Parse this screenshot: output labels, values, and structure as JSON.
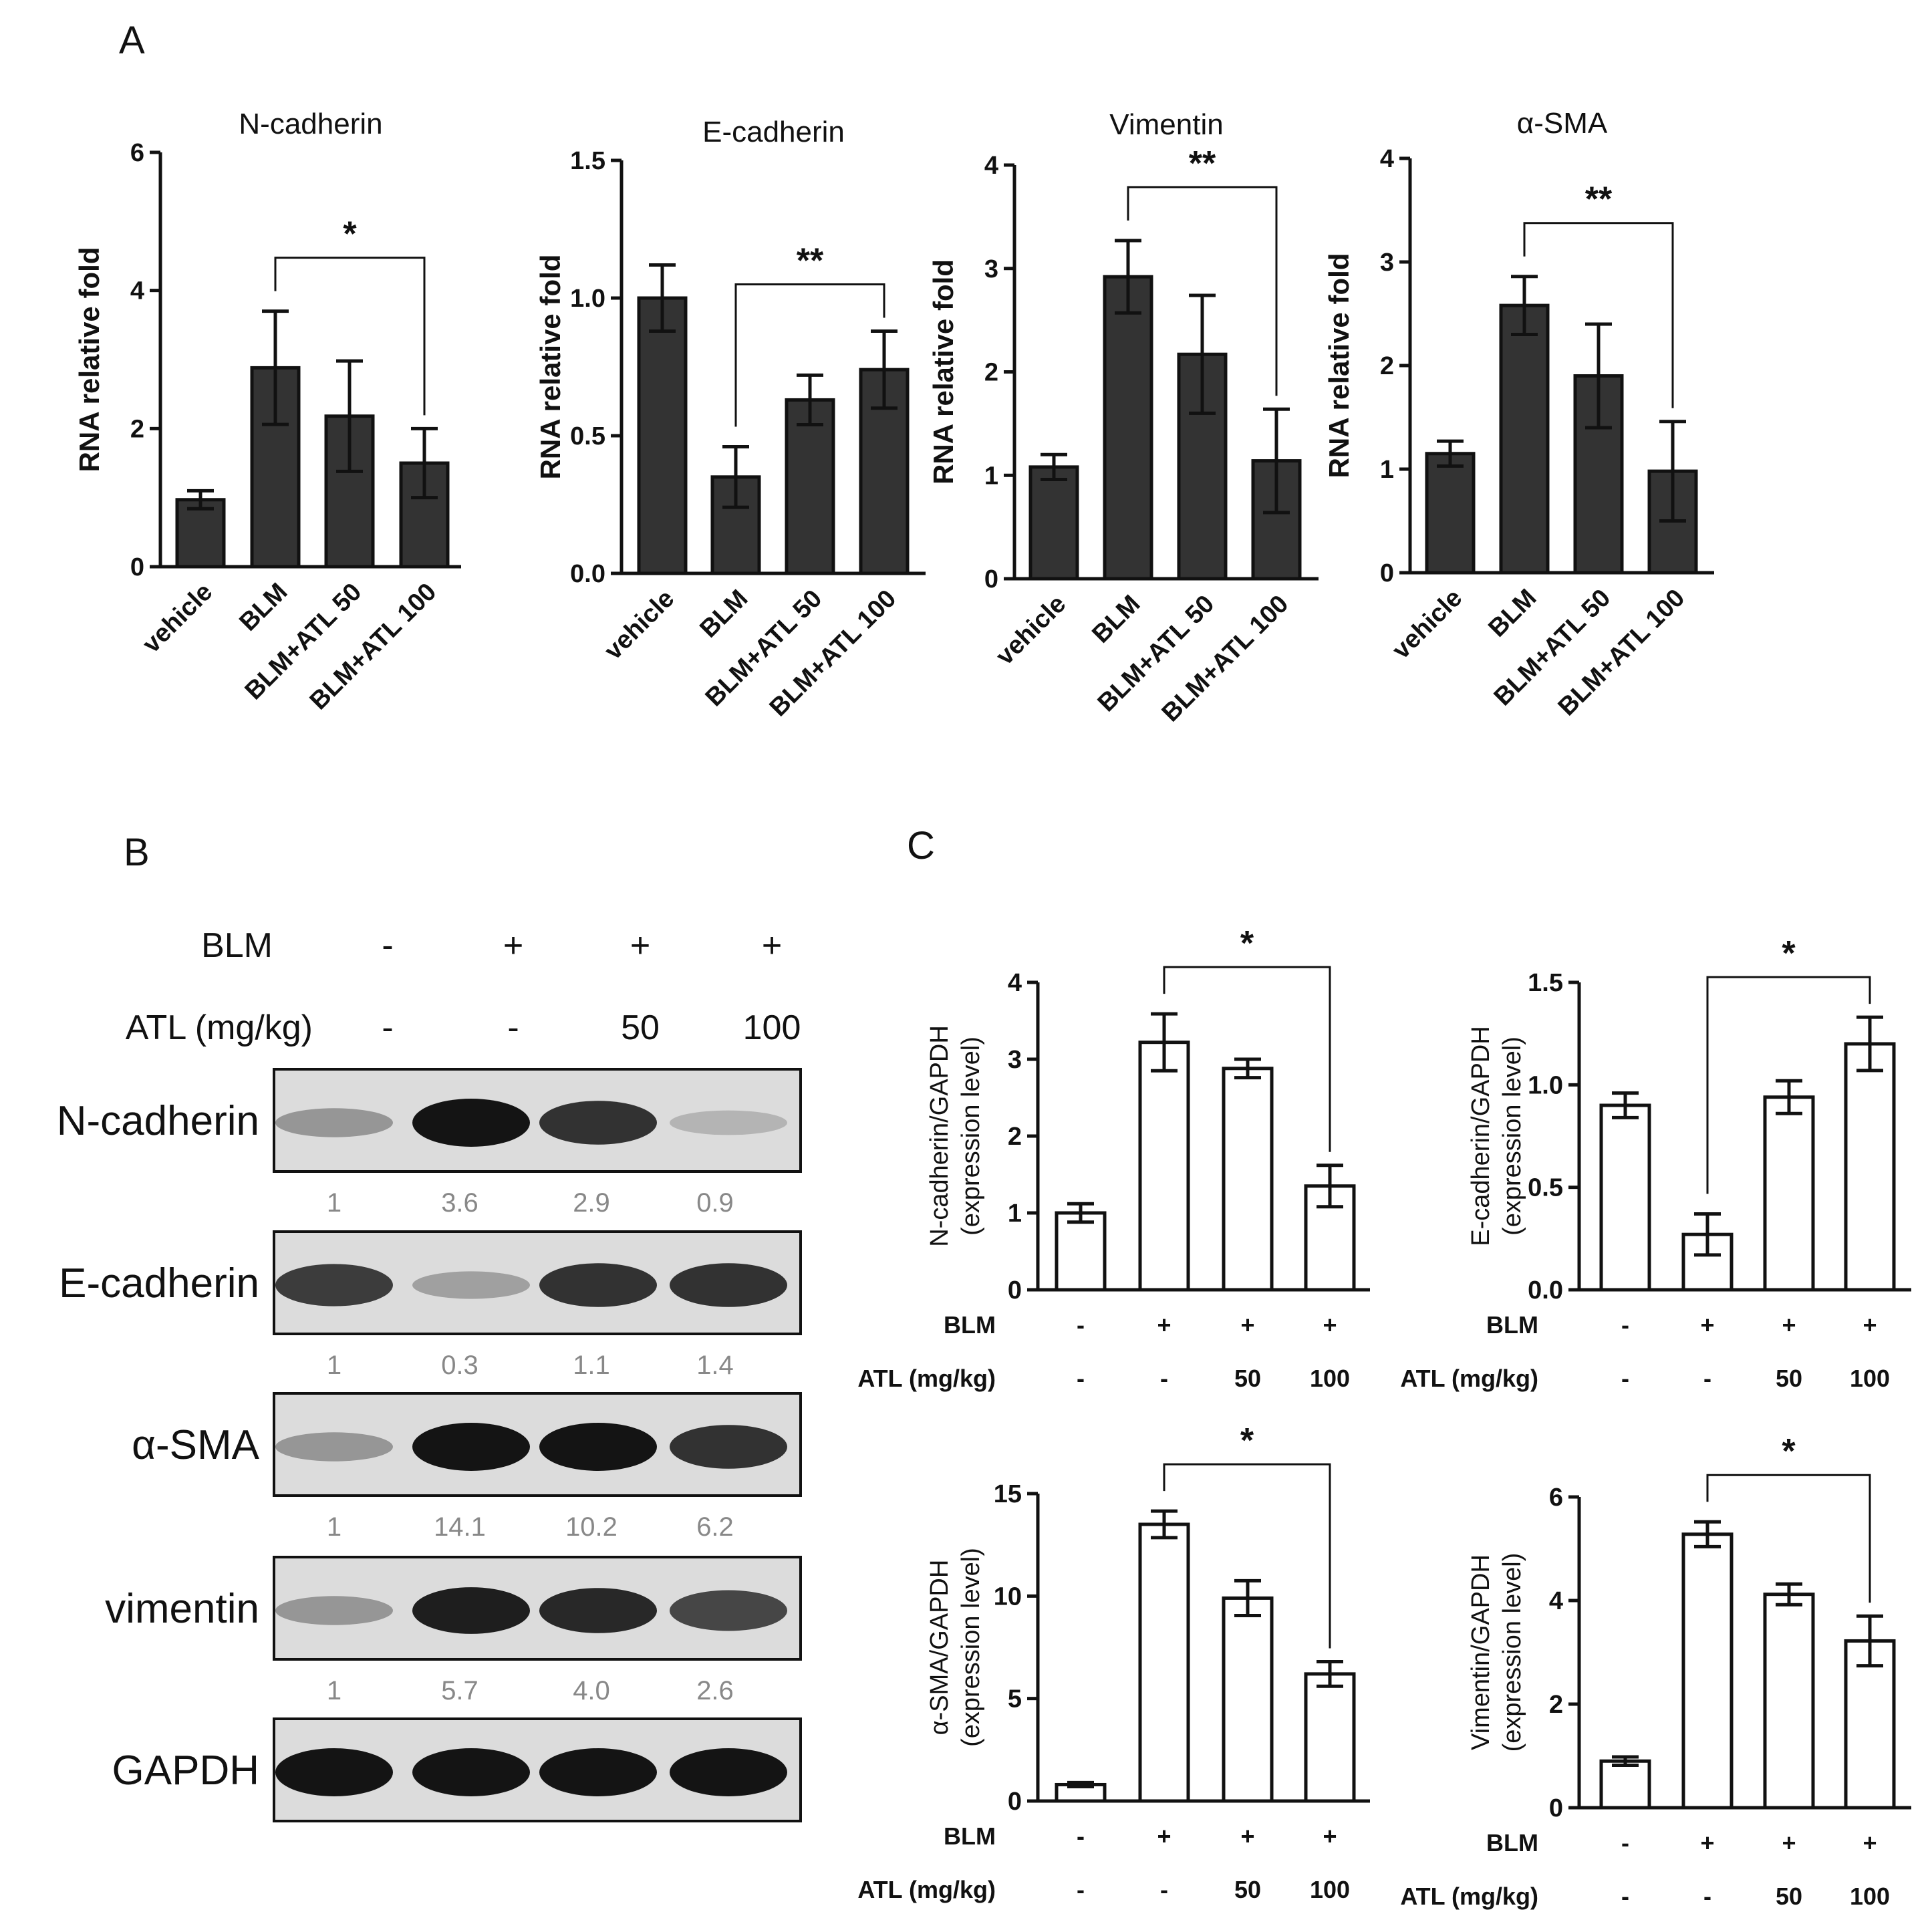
{
  "panel_labels": [
    "A",
    "B",
    "C"
  ],
  "colors": {
    "bar_fill_A": "#333333",
    "bar_fill_C": "#ffffff",
    "axis": "#111111",
    "wb_value_text": "#888888"
  },
  "chart_data": [
    {
      "id": "A1",
      "type": "bar",
      "title": "N-cadherin",
      "ylabel": "RNA relative fold",
      "xlabel": "",
      "categories": [
        "vehicle",
        "BLM",
        "BLM+ATL 50",
        "BLM+ATL 100"
      ],
      "values": [
        0.97,
        2.88,
        2.18,
        1.5
      ],
      "errors": [
        0.13,
        0.82,
        0.8,
        0.5
      ],
      "ylim": [
        0,
        6
      ],
      "yticks": [
        "0",
        "2",
        "4",
        "6"
      ],
      "significance": {
        "from": 1,
        "to": 3,
        "label": "*"
      }
    },
    {
      "id": "A2",
      "type": "bar",
      "title": "E-cadherin",
      "ylabel": "RNA relative fold",
      "xlabel": "",
      "categories": [
        "vehicle",
        "BLM",
        "BLM+ATL 50",
        "BLM+ATL 100"
      ],
      "values": [
        1.0,
        0.35,
        0.63,
        0.74
      ],
      "errors": [
        0.12,
        0.11,
        0.09,
        0.14
      ],
      "ylim": [
        0,
        1.5
      ],
      "yticks": [
        "0.0",
        "0.5",
        "1.0",
        "1.5"
      ],
      "significance": {
        "from": 1,
        "to": 3,
        "label": "**"
      }
    },
    {
      "id": "A3",
      "type": "bar",
      "title": "Vimentin",
      "ylabel": "RNA relative fold",
      "xlabel": "",
      "categories": [
        "vehicle",
        "BLM",
        "BLM+ATL 50",
        "BLM+ATL 100"
      ],
      "values": [
        1.08,
        2.92,
        2.17,
        1.14
      ],
      "errors": [
        0.12,
        0.35,
        0.57,
        0.5
      ],
      "ylim": [
        0,
        4
      ],
      "yticks": [
        "0",
        "1",
        "2",
        "3",
        "4"
      ],
      "significance": {
        "from": 1,
        "to": 3,
        "label": "**"
      }
    },
    {
      "id": "A4",
      "type": "bar",
      "title": "α-SMA",
      "ylabel": "RNA relative fold",
      "xlabel": "",
      "categories": [
        "vehicle",
        "BLM",
        "BLM+ATL 50",
        "BLM+ATL 100"
      ],
      "values": [
        1.15,
        2.58,
        1.9,
        0.98
      ],
      "errors": [
        0.12,
        0.28,
        0.5,
        0.48
      ],
      "ylim": [
        0,
        4
      ],
      "yticks": [
        "0",
        "1",
        "2",
        "3",
        "4"
      ],
      "significance": {
        "from": 1,
        "to": 3,
        "label": "**"
      }
    },
    {
      "id": "C1",
      "type": "bar",
      "ylabel": "N-cadherin/GAPDH",
      "ylabel2": "(expression level)",
      "values": [
        1.0,
        3.22,
        2.88,
        1.35
      ],
      "errors": [
        0.12,
        0.37,
        0.12,
        0.27
      ],
      "ylim": [
        0,
        4
      ],
      "yticks": [
        "0",
        "1",
        "2",
        "3",
        "4"
      ],
      "significance": {
        "from": 1,
        "to": 3,
        "label": "*"
      },
      "conditions": {
        "blm_label": "BLM",
        "blm": [
          "-",
          "+",
          "+",
          "+"
        ],
        "atl_label": "ATL (mg/kg)",
        "atl": [
          "-",
          "-",
          "50",
          "100"
        ]
      }
    },
    {
      "id": "C2",
      "type": "bar",
      "ylabel": "E-cadherin/GAPDH",
      "ylabel2": "(expression level)",
      "values": [
        0.9,
        0.27,
        0.94,
        1.2
      ],
      "errors": [
        0.06,
        0.1,
        0.08,
        0.13
      ],
      "ylim": [
        0,
        1.5
      ],
      "yticks": [
        "0.0",
        "0.5",
        "1.0",
        "1.5"
      ],
      "significance": {
        "from": 1,
        "to": 3,
        "label": "*"
      },
      "conditions": {
        "blm_label": "BLM",
        "blm": [
          "-",
          "+",
          "+",
          "+"
        ],
        "atl_label": "ATL (mg/kg)",
        "atl": [
          "-",
          "-",
          "50",
          "100"
        ]
      }
    },
    {
      "id": "C3",
      "type": "bar",
      "ylabel": "α-SMA/GAPDH",
      "ylabel2": "(expression level)",
      "values": [
        0.8,
        13.5,
        9.9,
        6.2
      ],
      "errors": [
        0.1,
        0.65,
        0.85,
        0.6
      ],
      "ylim": [
        0,
        15
      ],
      "yticks": [
        "0",
        "5",
        "10",
        "15"
      ],
      "significance": {
        "from": 1,
        "to": 3,
        "label": "*"
      },
      "conditions": {
        "blm_label": "BLM",
        "blm": [
          "-",
          "+",
          "+",
          "+"
        ],
        "atl_label": "ATL (mg/kg)",
        "atl": [
          "-",
          "-",
          "50",
          "100"
        ]
      }
    },
    {
      "id": "C4",
      "type": "bar",
      "ylabel": "Vimentin/GAPDH",
      "ylabel2": "(expression level)",
      "values": [
        0.9,
        5.28,
        4.12,
        3.22
      ],
      "errors": [
        0.08,
        0.24,
        0.2,
        0.48
      ],
      "ylim": [
        0,
        6
      ],
      "yticks": [
        "0",
        "2",
        "4",
        "6"
      ],
      "significance": {
        "from": 1,
        "to": 3,
        "label": "*"
      },
      "conditions": {
        "blm_label": "BLM",
        "blm": [
          "-",
          "+",
          "+",
          "+"
        ],
        "atl_label": "ATL (mg/kg)",
        "atl": [
          "-",
          "-",
          "50",
          "100"
        ]
      }
    }
  ],
  "western_blot": {
    "header_rows": [
      {
        "label": "BLM",
        "values": [
          "-",
          "+",
          "+",
          "+"
        ]
      },
      {
        "label": "ATL (mg/kg)",
        "values": [
          "-",
          "-",
          "50",
          "100"
        ]
      }
    ],
    "blots": [
      {
        "protein": "N-cadherin",
        "quant": [
          "1",
          "3.6",
          "2.9",
          "0.9"
        ],
        "intensity": [
          0.35,
          1.0,
          0.85,
          0.2
        ]
      },
      {
        "protein": "E-cadherin",
        "quant": [
          "1",
          "0.3",
          "1.1",
          "1.4"
        ],
        "intensity": [
          0.8,
          0.3,
          0.85,
          0.85
        ]
      },
      {
        "protein": "α-SMA",
        "quant": [
          "1",
          "14.1",
          "10.2",
          "6.2"
        ],
        "intensity": [
          0.35,
          1.0,
          1.0,
          0.85
        ]
      },
      {
        "protein": "vimentin",
        "quant": [
          "1",
          "5.7",
          "4.0",
          "2.6"
        ],
        "intensity": [
          0.35,
          0.95,
          0.9,
          0.75
        ]
      },
      {
        "protein": "GAPDH",
        "quant": [],
        "intensity": [
          1.0,
          1.0,
          1.0,
          1.0
        ]
      }
    ]
  }
}
